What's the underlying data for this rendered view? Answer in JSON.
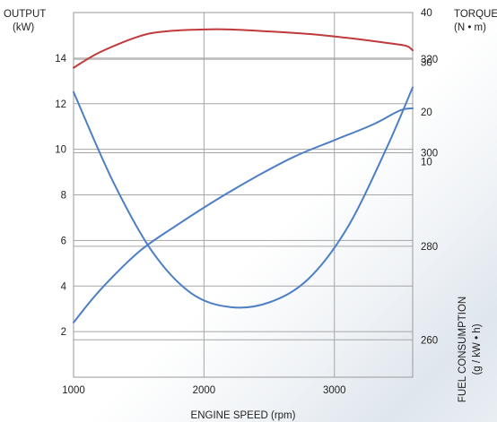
{
  "chart_data": {
    "type": "line",
    "x_label": "ENGINE SPEED (rpm)",
    "x_ticks": [
      1000,
      2000,
      3000
    ],
    "x_range": [
      1000,
      3600
    ],
    "output_axis": {
      "title_line1": "OUTPUT",
      "title_line2": "(kW)",
      "ticks": [
        2,
        4,
        6,
        8,
        10,
        12,
        14
      ],
      "range": [
        0,
        16
      ]
    },
    "torque_axis": {
      "title_line1": "TORQUE",
      "title_line2": "(N • m)",
      "ticks": [
        10,
        20,
        30,
        40
      ],
      "range": [
        -33.3,
        40
      ]
    },
    "fuel_axis": {
      "title_line1": "FUEL CONSUMPTION",
      "title_line2": "(g / kW • h)",
      "ticks": [
        260,
        280,
        300,
        320
      ],
      "range": [
        252,
        330
      ]
    },
    "series": [
      {
        "key": "torque",
        "color": "#c0393b",
        "x": [
          1000,
          1200,
          1500,
          1700,
          2000,
          2200,
          2500,
          2800,
          3100,
          3400,
          3550,
          3600
        ],
        "y": [
          28.9,
          32.0,
          35.2,
          36.2,
          36.6,
          36.6,
          36.2,
          35.7,
          34.9,
          33.9,
          33.3,
          32.4
        ]
      },
      {
        "key": "output",
        "color": "#4d7fc4",
        "x": [
          1000,
          1200,
          1500,
          1800,
          2100,
          2400,
          2700,
          3000,
          3300,
          3500,
          3600
        ],
        "y": [
          2.4,
          3.8,
          5.5,
          6.7,
          7.8,
          8.8,
          9.7,
          10.4,
          11.1,
          11.7,
          11.8
        ]
      },
      {
        "key": "fuel",
        "color": "#4d7fc4",
        "x": [
          1000,
          1300,
          1600,
          1900,
          2200,
          2500,
          2800,
          3100,
          3400,
          3600
        ],
        "y": [
          313,
          294,
          279,
          270,
          267,
          268,
          273,
          284,
          301,
          314
        ]
      }
    ]
  }
}
